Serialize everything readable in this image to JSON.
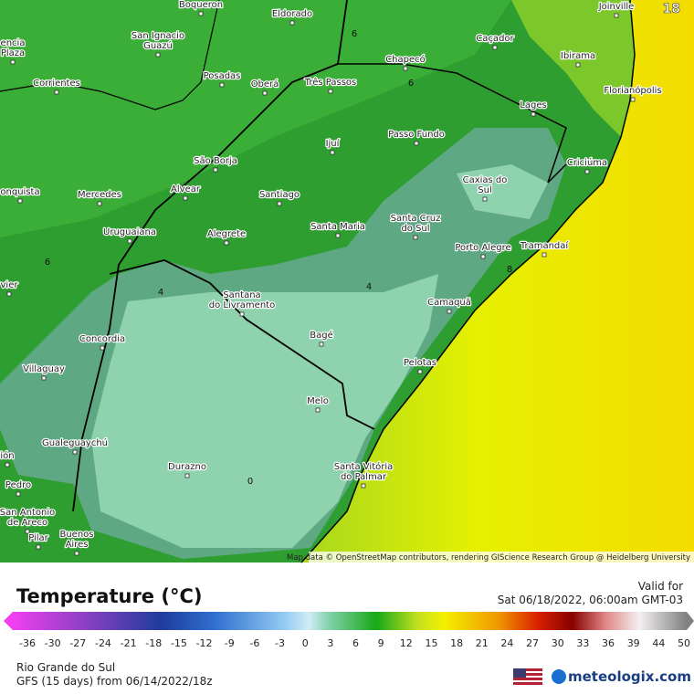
{
  "map": {
    "frame_label": "18",
    "attribution": "Map data © OpenStreetMap contributors, rendering GIScience Research Group @ Heidelberg University",
    "contour_labels": [
      "6",
      "6",
      "6",
      "4",
      "4",
      "8",
      "0"
    ],
    "cities": [
      {
        "label": [
          "Boqueron"
        ]
      },
      {
        "label": [
          "Eldorado"
        ]
      },
      {
        "label": [
          "San Ignacio",
          "Guazú"
        ]
      },
      {
        "label": [
          "encia",
          "Plaza"
        ]
      },
      {
        "label": [
          "Posadas"
        ]
      },
      {
        "label": [
          "Oberá"
        ]
      },
      {
        "label": [
          "Três Passos"
        ]
      },
      {
        "label": [
          "Chapecó"
        ]
      },
      {
        "label": [
          "Caçador"
        ]
      },
      {
        "label": [
          "Joinville"
        ]
      },
      {
        "label": [
          "Ibirama"
        ]
      },
      {
        "label": [
          "Florianópolis"
        ]
      },
      {
        "label": [
          "Corrientes"
        ]
      },
      {
        "label": [
          "Lages"
        ]
      },
      {
        "label": [
          "Passo Fundo"
        ]
      },
      {
        "label": [
          "Ijuí"
        ]
      },
      {
        "label": [
          "São Borja"
        ]
      },
      {
        "label": [
          "Criciúma"
        ]
      },
      {
        "label": [
          "Caxias do",
          "Sul"
        ]
      },
      {
        "label": [
          "Alvear"
        ]
      },
      {
        "label": [
          "Mercedes"
        ]
      },
      {
        "label": [
          "Santiago"
        ]
      },
      {
        "label": [
          "onquista"
        ]
      },
      {
        "label": [
          "Santa Cruz",
          "do Sul"
        ]
      },
      {
        "label": [
          "Santa Maria"
        ]
      },
      {
        "label": [
          "Uruguaiana"
        ]
      },
      {
        "label": [
          "Alegrete"
        ]
      },
      {
        "label": [
          "Porto Alegre"
        ]
      },
      {
        "label": [
          "Tramandaí"
        ]
      },
      {
        "label": [
          "vier"
        ]
      },
      {
        "label": [
          "Santana",
          "do Livramento"
        ]
      },
      {
        "label": [
          "Camaquã"
        ]
      },
      {
        "label": [
          "Concordia"
        ]
      },
      {
        "label": [
          "Bagé"
        ]
      },
      {
        "label": [
          "Villaguay"
        ]
      },
      {
        "label": [
          "Pelotas"
        ]
      },
      {
        "label": [
          "Melo"
        ]
      },
      {
        "label": [
          "Gualeguaychú"
        ]
      },
      {
        "label": [
          "ión"
        ]
      },
      {
        "label": [
          "Santa Vitória",
          "do Palmar"
        ]
      },
      {
        "label": [
          "Durazno"
        ]
      },
      {
        "label": [
          "Pedro"
        ]
      },
      {
        "label": [
          "San Antonio",
          "de Areco"
        ]
      },
      {
        "label": [
          "Pilar"
        ]
      },
      {
        "label": [
          "Buenos",
          "Aires"
        ]
      }
    ]
  },
  "legend": {
    "title": "Temperature (°C)",
    "valid_label": "Valid for",
    "valid_time": "Sat 06/18/2022, 06:00am GMT-03",
    "ticks": [
      -36,
      -30,
      -27,
      -24,
      -21,
      -18,
      -15,
      -12,
      -9,
      -6,
      -3,
      0,
      3,
      6,
      9,
      12,
      15,
      18,
      21,
      24,
      27,
      30,
      33,
      36,
      39,
      44,
      50
    ]
  },
  "footer": {
    "region": "Rio Grande do Sul",
    "model": "GFS (15 days) from 06/14/2022/18z",
    "brand": "meteologix.com"
  }
}
